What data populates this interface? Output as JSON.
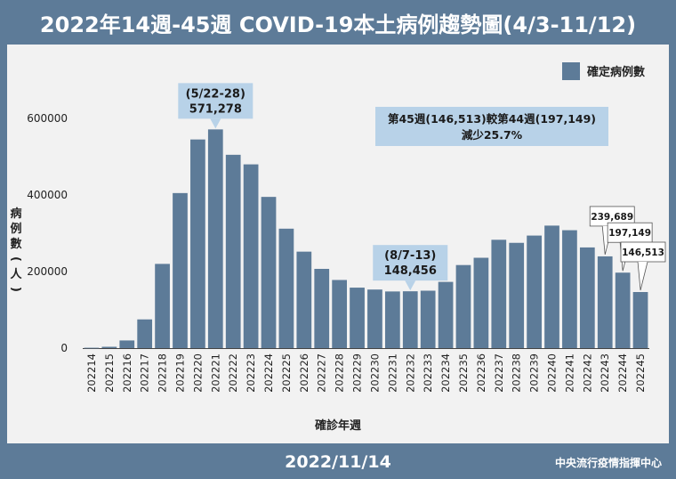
{
  "header": {
    "title": "2022年14週-45週 COVID-19本土病例趨勢圖(4/3-11/12)"
  },
  "footer": {
    "date": "2022/11/14",
    "org": "中央流行疫情指揮中心"
  },
  "chart_data": {
    "type": "bar",
    "title": "2022年14週-45週 COVID-19本土病例趨勢圖(4/3-11/12)",
    "xlabel": "確診年週",
    "ylabel": "病例數(人)",
    "ylim": [
      0,
      700000
    ],
    "yticks": [
      0,
      200000,
      400000,
      600000
    ],
    "ytick_labels": [
      "0",
      "200000",
      "400000",
      "600000"
    ],
    "legend": {
      "label": "確定病例數",
      "position": "top-right"
    },
    "grid": false,
    "colors": {
      "bar": "#5d7b98",
      "callout": "#b8d2e8",
      "background": "#f2f2f2"
    },
    "categories": [
      "202214",
      "202215",
      "202216",
      "202217",
      "202218",
      "202219",
      "202220",
      "202221",
      "202222",
      "202223",
      "202224",
      "202225",
      "202226",
      "202227",
      "202228",
      "202229",
      "202230",
      "202231",
      "202232",
      "202233",
      "202234",
      "202235",
      "202236",
      "202237",
      "202238",
      "202239",
      "202240",
      "202241",
      "202242",
      "202243",
      "202244",
      "202245"
    ],
    "series": [
      {
        "name": "確定病例數",
        "values": [
          1000,
          3500,
          20000,
          75000,
          220000,
          405000,
          545000,
          571278,
          505000,
          480000,
          395000,
          312000,
          252000,
          207000,
          178000,
          158000,
          153000,
          148000,
          148456,
          150000,
          173000,
          217000,
          236000,
          283000,
          275000,
          294000,
          320000,
          308000,
          263000,
          239689,
          197149,
          146513
        ]
      }
    ],
    "annotations": [
      {
        "kind": "callout",
        "category": "202221",
        "lines": [
          "(5/22-28)",
          "571,278"
        ]
      },
      {
        "kind": "callout",
        "category": "202232",
        "lines": [
          "(8/7-13)",
          "148,456"
        ]
      },
      {
        "kind": "note",
        "lines": [
          "第45週(146,513)較第44週(197,149)",
          "減少25.7%"
        ]
      },
      {
        "kind": "label",
        "category": "202243",
        "text": "239,689"
      },
      {
        "kind": "label",
        "category": "202244",
        "text": "197,149"
      },
      {
        "kind": "label",
        "category": "202245",
        "text": "146,513"
      }
    ]
  }
}
